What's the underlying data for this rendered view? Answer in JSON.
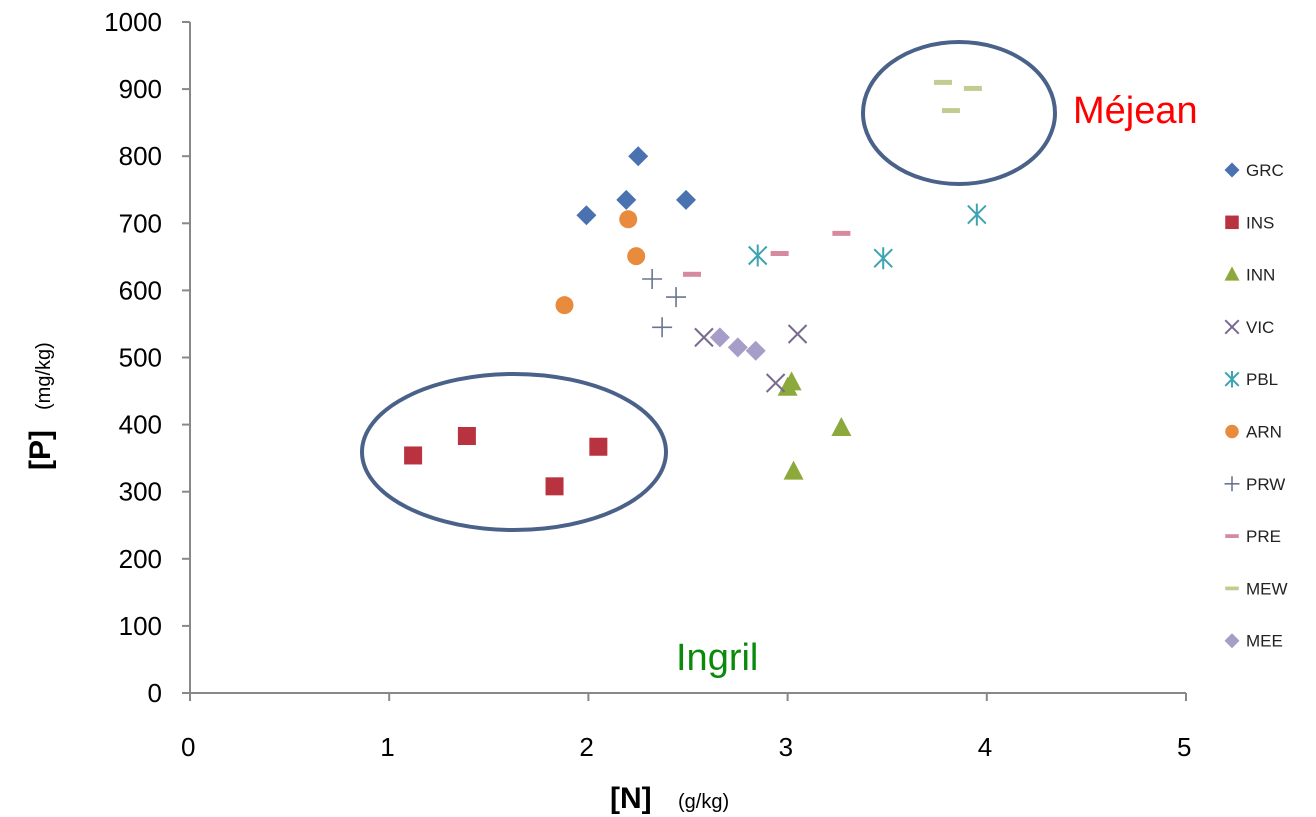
{
  "chart_data": {
    "type": "scatter",
    "xlim": [
      0,
      5
    ],
    "ylim": [
      0,
      1000
    ],
    "xticks": [
      "0",
      "1",
      "2",
      "3",
      "4",
      "5"
    ],
    "yticks": [
      "0",
      "100",
      "200",
      "300",
      "400",
      "500",
      "600",
      "700",
      "800",
      "900",
      "1000"
    ],
    "xlabel": {
      "main": "[N]",
      "unit": "(g/kg)"
    },
    "ylabel": {
      "main": "[P]",
      "unit": "(mg/kg)"
    },
    "grid": false,
    "legend_position": "right",
    "series": [
      {
        "name": "GRC",
        "marker": "diamond",
        "color": "#4a72b0",
        "points": [
          [
            1.99,
            712
          ],
          [
            2.19,
            735
          ],
          [
            2.25,
            800
          ],
          [
            2.49,
            735
          ]
        ]
      },
      {
        "name": "INS",
        "marker": "square",
        "color": "#b8323f",
        "points": [
          [
            1.12,
            354
          ],
          [
            1.39,
            383
          ],
          [
            1.83,
            308
          ],
          [
            2.05,
            367
          ]
        ]
      },
      {
        "name": "INN",
        "marker": "triangle",
        "color": "#8caa3c",
        "points": [
          [
            3.0,
            455
          ],
          [
            3.02,
            463
          ],
          [
            3.03,
            330
          ],
          [
            3.27,
            395
          ]
        ]
      },
      {
        "name": "VIC",
        "marker": "x",
        "color": "#7a6a8f",
        "points": [
          [
            2.58,
            530
          ],
          [
            2.94,
            462
          ],
          [
            3.05,
            535
          ]
        ]
      },
      {
        "name": "PBL",
        "marker": "asterisk",
        "color": "#3ea3b3",
        "points": [
          [
            2.85,
            652
          ],
          [
            3.48,
            648
          ],
          [
            3.95,
            713
          ]
        ]
      },
      {
        "name": "ARN",
        "marker": "circle",
        "color": "#e88b3c",
        "points": [
          [
            1.88,
            578
          ],
          [
            2.2,
            706
          ],
          [
            2.24,
            651
          ]
        ]
      },
      {
        "name": "PRW",
        "marker": "plus",
        "color": "#6b7590",
        "points": [
          [
            2.32,
            617
          ],
          [
            2.37,
            545
          ],
          [
            2.44,
            590
          ]
        ]
      },
      {
        "name": "PRE",
        "marker": "dash",
        "color": "#d68a9e",
        "points": [
          [
            2.52,
            624
          ],
          [
            2.96,
            655
          ],
          [
            3.27,
            685
          ]
        ]
      },
      {
        "name": "MEW",
        "marker": "dash",
        "color": "#c0cc90",
        "points": [
          [
            3.78,
            910
          ],
          [
            3.82,
            868
          ],
          [
            3.93,
            901
          ]
        ]
      },
      {
        "name": "MEE",
        "marker": "diamond",
        "color": "#a69ec8",
        "points": [
          [
            2.66,
            530
          ],
          [
            2.75,
            515
          ],
          [
            2.84,
            510
          ]
        ]
      }
    ],
    "annotations": [
      {
        "text": "Méjean",
        "color": "#ff0000"
      },
      {
        "text": "Ingril",
        "color": "#0a8a0a"
      }
    ]
  }
}
